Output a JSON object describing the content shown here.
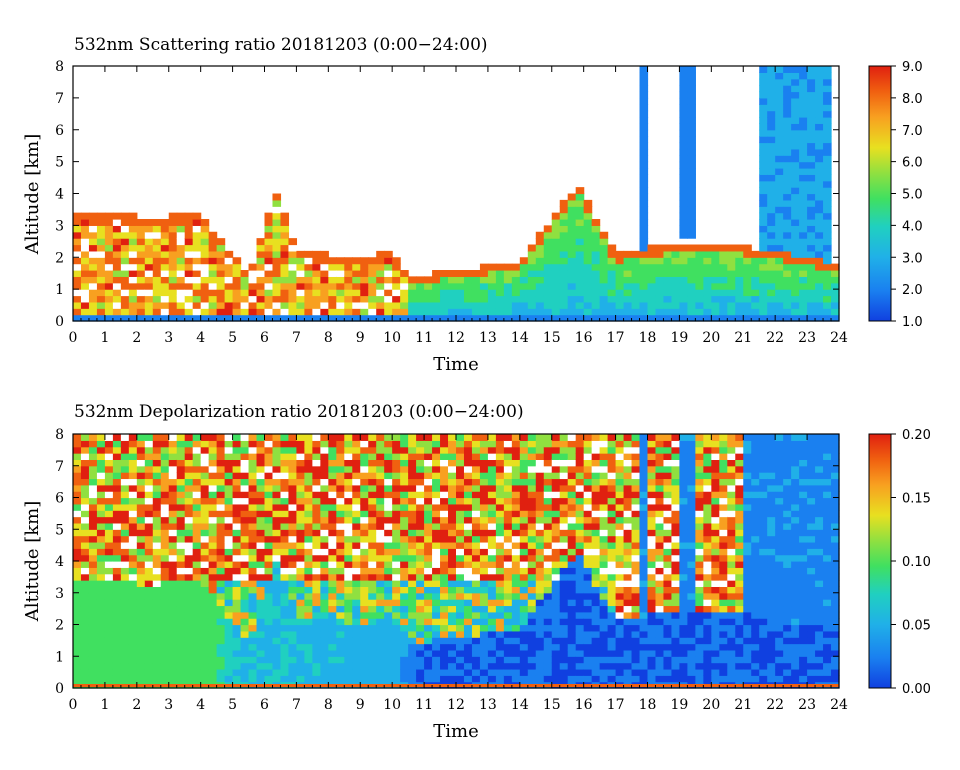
{
  "colors": {
    "colormap": [
      "#1040e0",
      "#1a80f0",
      "#20b0e8",
      "#20d0c0",
      "#40e060",
      "#90e040",
      "#e8e020",
      "#f8a020",
      "#f06010",
      "#e02010"
    ],
    "saturated": "#ffffff",
    "axis": "#000000"
  },
  "chart_data": [
    {
      "type": "heatmap",
      "title": "532nm Scattering ratio  20181203 (0:00−24:00)",
      "xlabel": "Time",
      "ylabel": "Altitude [km]",
      "xlim": [
        0,
        24
      ],
      "ylim": [
        0,
        8
      ],
      "x_ticks": [
        "0",
        "1",
        "2",
        "3",
        "4",
        "5",
        "6",
        "7",
        "8",
        "9",
        "10",
        "11",
        "12",
        "13",
        "14",
        "15",
        "16",
        "17",
        "18",
        "19",
        "20",
        "21",
        "22",
        "23",
        "24"
      ],
      "y_ticks": [
        "0",
        "1",
        "2",
        "3",
        "4",
        "5",
        "6",
        "7",
        "8"
      ],
      "colorbar": {
        "min": 1.0,
        "max": 9.0,
        "ticks": [
          "1.0",
          "2.0",
          "3.0",
          "4.0",
          "5.0",
          "6.0",
          "7.0",
          "8.0",
          "9.0"
        ]
      },
      "cloud_top_km": [
        {
          "time": 0,
          "top": 3.4
        },
        {
          "time": 1,
          "top": 3.4
        },
        {
          "time": 2,
          "top": 3.3
        },
        {
          "time": 3,
          "top": 3.3
        },
        {
          "time": 4,
          "top": 3.4
        },
        {
          "time": 4.6,
          "top": 2.6
        },
        {
          "time": 5.5,
          "top": 1.5
        },
        {
          "time": 6.4,
          "top": 4.1
        },
        {
          "time": 7,
          "top": 2.2
        },
        {
          "time": 8,
          "top": 2.1
        },
        {
          "time": 9,
          "top": 2.0
        },
        {
          "time": 10,
          "top": 2.2
        },
        {
          "time": 10.5,
          "top": 1.4
        },
        {
          "time": 12,
          "top": 1.6
        },
        {
          "time": 14,
          "top": 1.9
        },
        {
          "time": 15.8,
          "top": 4.3
        },
        {
          "time": 17,
          "top": 2.1
        },
        {
          "time": 18,
          "top": 2.3
        },
        {
          "time": 20,
          "top": 2.5
        },
        {
          "time": 22,
          "top": 2.2
        },
        {
          "time": 24,
          "top": 1.8
        }
      ]
    },
    {
      "type": "heatmap",
      "title": "532nm Depolarization ratio  20181203 (0:00−24:00)",
      "xlabel": "Time",
      "ylabel": "Altitude [km]",
      "xlim": [
        0,
        24
      ],
      "ylim": [
        0,
        8
      ],
      "x_ticks": [
        "0",
        "1",
        "2",
        "3",
        "4",
        "5",
        "6",
        "7",
        "8",
        "9",
        "10",
        "11",
        "12",
        "13",
        "14",
        "15",
        "16",
        "17",
        "18",
        "19",
        "20",
        "21",
        "22",
        "23",
        "24"
      ],
      "y_ticks": [
        "0",
        "1",
        "2",
        "3",
        "4",
        "5",
        "6",
        "7",
        "8"
      ],
      "colorbar": {
        "min": 0.0,
        "max": 0.2,
        "ticks": [
          "0.00",
          "0.05",
          "0.10",
          "0.15",
          "0.20"
        ]
      },
      "low_layer_ratio": [
        {
          "time": 0,
          "value": 0.09
        },
        {
          "time": 4.5,
          "value": 0.09
        },
        {
          "time": 5,
          "value": 0.06
        },
        {
          "time": 10,
          "value": 0.05
        },
        {
          "time": 11,
          "value": 0.02
        },
        {
          "time": 24,
          "value": 0.02
        }
      ]
    }
  ]
}
